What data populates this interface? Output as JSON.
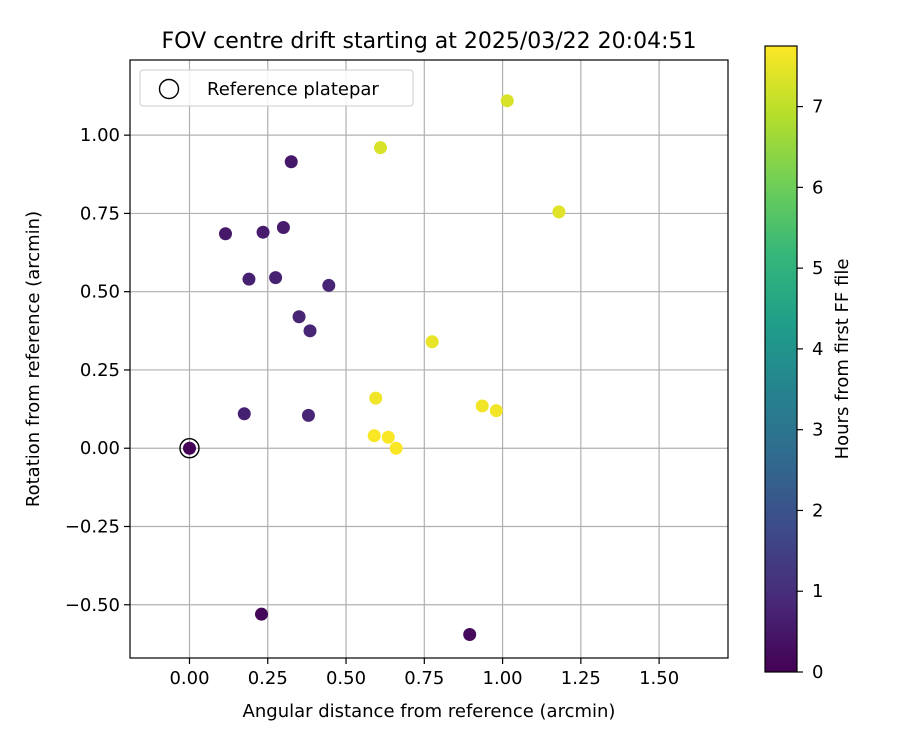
{
  "chart_data": {
    "type": "scatter",
    "title": "FOV centre drift starting at 2025/03/22 20:04:51",
    "xlabel": "Angular distance from reference (arcmin)",
    "ylabel": "Rotation from reference (arcmin)",
    "xlim": [
      -0.19,
      1.72
    ],
    "ylim": [
      -0.67,
      1.24
    ],
    "xticks": [
      0.0,
      0.25,
      0.5,
      0.75,
      1.0,
      1.25,
      1.5
    ],
    "xtick_labels": [
      "0.00",
      "0.25",
      "0.50",
      "0.75",
      "1.00",
      "1.25",
      "1.50"
    ],
    "yticks": [
      -0.5,
      -0.25,
      0.0,
      0.25,
      0.5,
      0.75,
      1.0
    ],
    "ytick_labels": [
      "−0.50",
      "−0.25",
      "0.00",
      "0.25",
      "0.50",
      "0.75",
      "1.00"
    ],
    "grid": true,
    "legend": {
      "placement": "top-left",
      "entries": [
        "Reference platepar"
      ]
    },
    "reference_point": {
      "x": 0.0,
      "y": 0.0
    },
    "colorbar": {
      "label": "Hours from first FF file",
      "colormap": "viridis",
      "range": [
        0,
        7.75
      ],
      "ticks": [
        0,
        1,
        2,
        3,
        4,
        5,
        6,
        7
      ],
      "tick_labels": [
        "0",
        "1",
        "2",
        "3",
        "4",
        "5",
        "6",
        "7"
      ]
    },
    "points": [
      {
        "x": 0.0,
        "y": 0.0,
        "hours": 0.05
      },
      {
        "x": 0.23,
        "y": -0.53,
        "hours": 0.1
      },
      {
        "x": 0.895,
        "y": -0.595,
        "hours": 0.2
      },
      {
        "x": 0.115,
        "y": 0.685,
        "hours": 0.5
      },
      {
        "x": 0.235,
        "y": 0.69,
        "hours": 0.6
      },
      {
        "x": 0.3,
        "y": 0.705,
        "hours": 0.6
      },
      {
        "x": 0.325,
        "y": 0.915,
        "hours": 0.5
      },
      {
        "x": 0.19,
        "y": 0.54,
        "hours": 0.7
      },
      {
        "x": 0.275,
        "y": 0.545,
        "hours": 0.7
      },
      {
        "x": 0.445,
        "y": 0.52,
        "hours": 0.8
      },
      {
        "x": 0.35,
        "y": 0.42,
        "hours": 0.8
      },
      {
        "x": 0.385,
        "y": 0.375,
        "hours": 0.8
      },
      {
        "x": 0.175,
        "y": 0.11,
        "hours": 0.7
      },
      {
        "x": 0.38,
        "y": 0.105,
        "hours": 0.8
      },
      {
        "x": 1.015,
        "y": 1.11,
        "hours": 7.3
      },
      {
        "x": 0.61,
        "y": 0.96,
        "hours": 7.3
      },
      {
        "x": 1.18,
        "y": 0.755,
        "hours": 7.4
      },
      {
        "x": 0.775,
        "y": 0.34,
        "hours": 7.5
      },
      {
        "x": 0.595,
        "y": 0.16,
        "hours": 7.6
      },
      {
        "x": 0.935,
        "y": 0.135,
        "hours": 7.6
      },
      {
        "x": 0.98,
        "y": 0.12,
        "hours": 7.6
      },
      {
        "x": 0.59,
        "y": 0.04,
        "hours": 7.7
      },
      {
        "x": 0.635,
        "y": 0.035,
        "hours": 7.7
      },
      {
        "x": 0.66,
        "y": 0.0,
        "hours": 7.7
      }
    ]
  }
}
